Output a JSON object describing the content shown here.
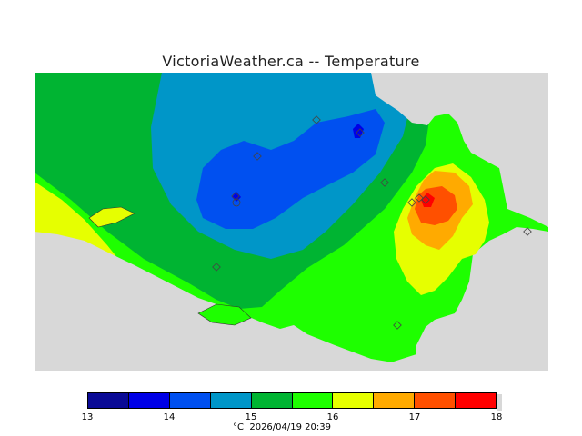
{
  "title": "VictoriaWeather.ca -- Temperature",
  "legend": {
    "colors": [
      "#0a0a96",
      "#0000e6",
      "#0050f0",
      "#0096c8",
      "#00b432",
      "#1eff00",
      "#e6ff00",
      "#ffaa00",
      "#ff5000",
      "#ff0000"
    ],
    "ticks": [
      "13",
      "14",
      "15",
      "16",
      "17",
      "18"
    ],
    "unit": "°C",
    "timestamp": "2026/04/19 20:39"
  },
  "map": {
    "background_color": "#d8d8d8",
    "stations": 12
  }
}
